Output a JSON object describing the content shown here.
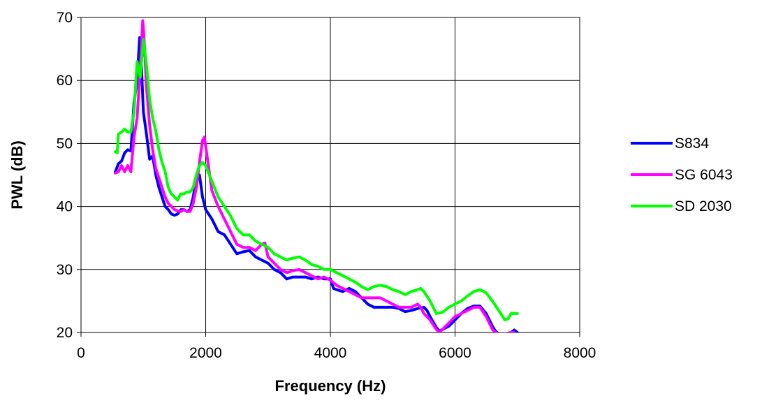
{
  "chart_data": {
    "type": "line",
    "title": "",
    "xlabel": "Frequency (Hz)",
    "ylabel": "PWL (dB)",
    "xlim": [
      0,
      8000
    ],
    "ylim": [
      20,
      70
    ],
    "xticks": [
      0,
      2000,
      4000,
      6000,
      8000
    ],
    "yticks": [
      20,
      30,
      40,
      50,
      60,
      70
    ],
    "xtick_labels": [
      "0",
      "2000",
      "4000",
      "6000",
      "8000"
    ],
    "ytick_labels": [
      "20",
      "30",
      "40",
      "50",
      "60",
      "70"
    ],
    "grid": true,
    "legend_position": "right",
    "series": [
      {
        "name": "S834",
        "color": "#0000ff",
        "points": [
          [
            550,
            45.5
          ],
          [
            600,
            46.8
          ],
          [
            650,
            47.2
          ],
          [
            700,
            48.5
          ],
          [
            750,
            49.0
          ],
          [
            800,
            48.8
          ],
          [
            850,
            56.5
          ],
          [
            900,
            60.0
          ],
          [
            940,
            66.8
          ],
          [
            970,
            62.0
          ],
          [
            1000,
            55.0
          ],
          [
            1050,
            51.5
          ],
          [
            1100,
            47.5
          ],
          [
            1150,
            48.0
          ],
          [
            1200,
            45.0
          ],
          [
            1250,
            43.0
          ],
          [
            1300,
            41.5
          ],
          [
            1350,
            40.0
          ],
          [
            1400,
            39.5
          ],
          [
            1450,
            38.8
          ],
          [
            1500,
            38.6
          ],
          [
            1550,
            38.8
          ],
          [
            1600,
            39.5
          ],
          [
            1650,
            39.5
          ],
          [
            1700,
            39.2
          ],
          [
            1750,
            39.5
          ],
          [
            1800,
            41.5
          ],
          [
            1850,
            44.5
          ],
          [
            1900,
            45.0
          ],
          [
            1950,
            41.5
          ],
          [
            2000,
            39.5
          ],
          [
            2100,
            38.0
          ],
          [
            2200,
            36.0
          ],
          [
            2300,
            35.5
          ],
          [
            2400,
            34.0
          ],
          [
            2500,
            32.5
          ],
          [
            2600,
            32.8
          ],
          [
            2700,
            33.0
          ],
          [
            2800,
            32.0
          ],
          [
            2900,
            31.5
          ],
          [
            3000,
            31.0
          ],
          [
            3100,
            30.0
          ],
          [
            3200,
            29.5
          ],
          [
            3300,
            28.5
          ],
          [
            3400,
            28.8
          ],
          [
            3500,
            28.8
          ],
          [
            3600,
            28.8
          ],
          [
            3700,
            28.5
          ],
          [
            3800,
            28.8
          ],
          [
            3900,
            28.5
          ],
          [
            4000,
            28.5
          ],
          [
            4050,
            27.0
          ],
          [
            4100,
            26.8
          ],
          [
            4200,
            26.5
          ],
          [
            4300,
            27.0
          ],
          [
            4400,
            26.5
          ],
          [
            4500,
            25.5
          ],
          [
            4600,
            24.5
          ],
          [
            4700,
            24.0
          ],
          [
            4800,
            24.0
          ],
          [
            4900,
            24.0
          ],
          [
            5000,
            24.0
          ],
          [
            5100,
            23.8
          ],
          [
            5200,
            23.3
          ],
          [
            5300,
            23.5
          ],
          [
            5400,
            23.8
          ],
          [
            5500,
            24.0
          ],
          [
            5550,
            23.5
          ],
          [
            5600,
            22.5
          ],
          [
            5700,
            20.8
          ],
          [
            5750,
            20.2
          ],
          [
            5800,
            20.5
          ],
          [
            5900,
            21.0
          ],
          [
            6000,
            22.0
          ],
          [
            6100,
            23.0
          ],
          [
            6200,
            23.8
          ],
          [
            6300,
            24.2
          ],
          [
            6400,
            24.2
          ],
          [
            6500,
            23.0
          ],
          [
            6600,
            21.0
          ],
          [
            6650,
            20.2
          ],
          [
            6700,
            19.8
          ],
          [
            6800,
            19.8
          ],
          [
            6900,
            20.0
          ],
          [
            6950,
            20.4
          ],
          [
            7000,
            20.0
          ]
        ]
      },
      {
        "name": "SG 6043",
        "color": "#ff00ff",
        "points": [
          [
            550,
            45.3
          ],
          [
            600,
            45.5
          ],
          [
            650,
            46.5
          ],
          [
            700,
            45.5
          ],
          [
            750,
            46.5
          ],
          [
            800,
            45.5
          ],
          [
            850,
            51.0
          ],
          [
            900,
            54.0
          ],
          [
            950,
            62.0
          ],
          [
            990,
            69.5
          ],
          [
            1010,
            67.0
          ],
          [
            1050,
            59.0
          ],
          [
            1100,
            53.0
          ],
          [
            1150,
            49.0
          ],
          [
            1200,
            46.0
          ],
          [
            1250,
            44.5
          ],
          [
            1300,
            43.0
          ],
          [
            1350,
            41.5
          ],
          [
            1400,
            40.5
          ],
          [
            1450,
            40.0
          ],
          [
            1500,
            39.5
          ],
          [
            1550,
            39.3
          ],
          [
            1600,
            39.2
          ],
          [
            1650,
            39.5
          ],
          [
            1700,
            39.2
          ],
          [
            1750,
            39.2
          ],
          [
            1800,
            40.5
          ],
          [
            1850,
            43.0
          ],
          [
            1900,
            47.0
          ],
          [
            1950,
            50.5
          ],
          [
            1980,
            51.0
          ],
          [
            2050,
            46.0
          ],
          [
            2100,
            42.5
          ],
          [
            2200,
            40.0
          ],
          [
            2300,
            38.0
          ],
          [
            2400,
            36.0
          ],
          [
            2500,
            34.0
          ],
          [
            2600,
            33.5
          ],
          [
            2700,
            33.5
          ],
          [
            2800,
            33.0
          ],
          [
            2900,
            34.0
          ],
          [
            2950,
            34.2
          ],
          [
            3000,
            32.0
          ],
          [
            3100,
            31.0
          ],
          [
            3200,
            30.0
          ],
          [
            3300,
            29.5
          ],
          [
            3400,
            29.8
          ],
          [
            3500,
            30.0
          ],
          [
            3600,
            29.5
          ],
          [
            3700,
            29.0
          ],
          [
            3800,
            28.5
          ],
          [
            3900,
            28.8
          ],
          [
            4000,
            28.3
          ],
          [
            4100,
            27.5
          ],
          [
            4200,
            27.0
          ],
          [
            4300,
            26.5
          ],
          [
            4400,
            26.0
          ],
          [
            4500,
            25.5
          ],
          [
            4600,
            25.5
          ],
          [
            4700,
            25.5
          ],
          [
            4800,
            25.5
          ],
          [
            4900,
            25.0
          ],
          [
            5000,
            24.5
          ],
          [
            5100,
            24.0
          ],
          [
            5200,
            24.0
          ],
          [
            5300,
            24.0
          ],
          [
            5400,
            24.5
          ],
          [
            5450,
            24.0
          ],
          [
            5500,
            23.0
          ],
          [
            5600,
            22.0
          ],
          [
            5700,
            20.5
          ],
          [
            5750,
            20.0
          ],
          [
            5800,
            20.5
          ],
          [
            5900,
            21.5
          ],
          [
            6000,
            22.5
          ],
          [
            6100,
            23.0
          ],
          [
            6200,
            23.5
          ],
          [
            6300,
            24.0
          ],
          [
            6400,
            24.0
          ],
          [
            6500,
            22.5
          ],
          [
            6600,
            20.5
          ],
          [
            6650,
            20.0
          ],
          [
            6700,
            19.8
          ],
          [
            6800,
            19.8
          ],
          [
            6900,
            20.0
          ],
          [
            6950,
            20.0
          ]
        ]
      },
      {
        "name": "SD 2030",
        "color": "#00ff00",
        "points": [
          [
            550,
            48.7
          ],
          [
            580,
            48.5
          ],
          [
            600,
            51.5
          ],
          [
            650,
            51.8
          ],
          [
            700,
            52.3
          ],
          [
            750,
            51.8
          ],
          [
            800,
            51.8
          ],
          [
            850,
            55.0
          ],
          [
            900,
            63.0
          ],
          [
            950,
            60.5
          ],
          [
            1000,
            66.5
          ],
          [
            1050,
            62.5
          ],
          [
            1100,
            57.0
          ],
          [
            1150,
            54.0
          ],
          [
            1200,
            52.0
          ],
          [
            1250,
            49.0
          ],
          [
            1300,
            47.0
          ],
          [
            1350,
            45.5
          ],
          [
            1400,
            43.0
          ],
          [
            1450,
            42.0
          ],
          [
            1500,
            41.5
          ],
          [
            1550,
            41.0
          ],
          [
            1600,
            42.0
          ],
          [
            1650,
            42.0
          ],
          [
            1700,
            42.3
          ],
          [
            1750,
            42.3
          ],
          [
            1800,
            43.0
          ],
          [
            1850,
            45.0
          ],
          [
            1900,
            46.5
          ],
          [
            1950,
            47.0
          ],
          [
            2000,
            46.5
          ],
          [
            2100,
            44.0
          ],
          [
            2200,
            41.5
          ],
          [
            2300,
            40.0
          ],
          [
            2400,
            38.5
          ],
          [
            2500,
            36.5
          ],
          [
            2600,
            35.5
          ],
          [
            2700,
            35.5
          ],
          [
            2800,
            34.5
          ],
          [
            2900,
            34.0
          ],
          [
            3000,
            33.5
          ],
          [
            3100,
            32.5
          ],
          [
            3200,
            32.0
          ],
          [
            3300,
            31.5
          ],
          [
            3400,
            31.8
          ],
          [
            3500,
            32.0
          ],
          [
            3600,
            31.5
          ],
          [
            3700,
            30.8
          ],
          [
            3800,
            30.5
          ],
          [
            3900,
            30.0
          ],
          [
            4000,
            30.0
          ],
          [
            4100,
            29.5
          ],
          [
            4200,
            29.0
          ],
          [
            4300,
            28.5
          ],
          [
            4400,
            28.0
          ],
          [
            4500,
            27.3
          ],
          [
            4600,
            26.8
          ],
          [
            4700,
            27.3
          ],
          [
            4800,
            27.5
          ],
          [
            4900,
            27.3
          ],
          [
            5000,
            26.8
          ],
          [
            5100,
            26.5
          ],
          [
            5200,
            26.0
          ],
          [
            5300,
            26.5
          ],
          [
            5400,
            26.8
          ],
          [
            5450,
            27.0
          ],
          [
            5500,
            26.5
          ],
          [
            5600,
            25.0
          ],
          [
            5700,
            23.0
          ],
          [
            5800,
            23.2
          ],
          [
            5900,
            24.0
          ],
          [
            6000,
            24.5
          ],
          [
            6100,
            25.0
          ],
          [
            6200,
            25.8
          ],
          [
            6300,
            26.5
          ],
          [
            6400,
            26.8
          ],
          [
            6500,
            26.3
          ],
          [
            6600,
            25.0
          ],
          [
            6700,
            23.5
          ],
          [
            6800,
            22.0
          ],
          [
            6850,
            22.2
          ],
          [
            6900,
            23.0
          ],
          [
            6950,
            23.0
          ],
          [
            7000,
            23.0
          ]
        ]
      }
    ]
  }
}
